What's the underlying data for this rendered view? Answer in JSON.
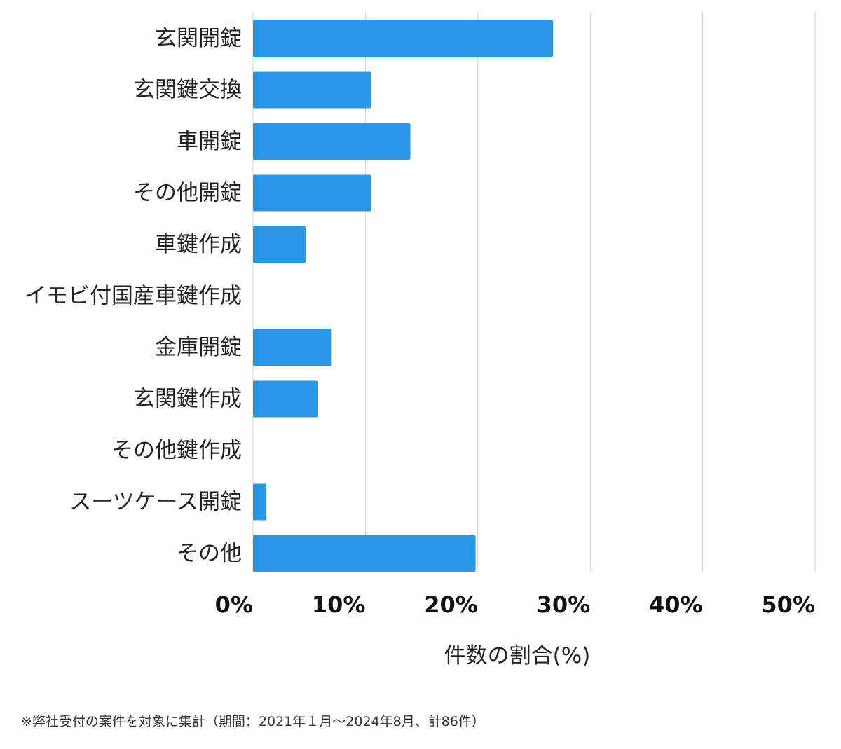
{
  "chart_data": {
    "type": "bar",
    "orientation": "horizontal",
    "categories": [
      "玄関開錠",
      "玄関鍵交換",
      "車開錠",
      "その他開錠",
      "車鍵作成",
      "イモビ付国産車鍵作成",
      "金庫開錠",
      "玄関鍵作成",
      "その他鍵作成",
      "スーツケース開錠",
      "その他"
    ],
    "values": [
      26.7,
      10.5,
      14.0,
      10.5,
      4.7,
      0,
      7.0,
      5.8,
      0,
      1.2,
      19.8
    ],
    "xlim": [
      0,
      50
    ],
    "xticks": [
      0,
      10,
      20,
      30,
      40,
      50
    ],
    "xtick_labels": [
      "0%",
      "10%",
      "20%",
      "30%",
      "40%",
      "50%"
    ],
    "xlabel": "件数の割合(%)",
    "ylabel": "",
    "title": "",
    "grid": true,
    "bar_color": "#2997e6",
    "grid_color": "#d0d0d0"
  },
  "footnote": "※弊社受付の案件を対象に集計（期間：2021年１月〜2024年8月、計86件）"
}
